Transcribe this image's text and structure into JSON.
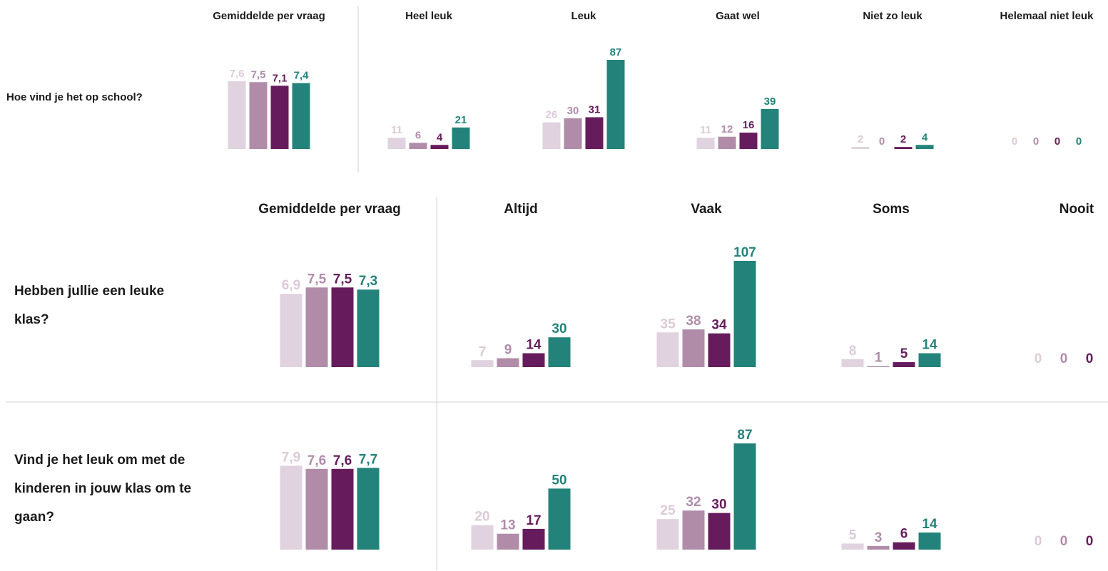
{
  "colors": [
    "#e0d2de",
    "#b08ca9",
    "#661c5c",
    "#23837a"
  ],
  "sections": [
    {
      "average_header": "Gemiddelde per vraag",
      "answers": [
        "Heel leuk",
        "Leuk",
        "Gaat wel",
        "Niet zo leuk",
        "Helemaal niet leuk"
      ],
      "questions": [
        {
          "text": "Hoe vind je het op school?",
          "averages": [
            7.6,
            7.5,
            7.1,
            7.4
          ],
          "average_labels": [
            "7,6",
            "7,5",
            "7,1",
            "7,4"
          ],
          "counts": [
            [
              11,
              6,
              4,
              21
            ],
            [
              26,
              30,
              31,
              87
            ],
            [
              11,
              12,
              16,
              39
            ],
            [
              2,
              0,
              2,
              4
            ],
            [
              0,
              0,
              0,
              0
            ]
          ]
        }
      ]
    },
    {
      "average_header": "Gemiddelde per vraag",
      "answers": [
        "Altijd",
        "Vaak",
        "Soms",
        "Nooit"
      ],
      "questions": [
        {
          "text": "Hebben jullie een leuke klas?",
          "averages": [
            6.9,
            7.5,
            7.5,
            7.3
          ],
          "average_labels": [
            "6,9",
            "7,5",
            "7,5",
            "7,3"
          ],
          "counts": [
            [
              7,
              9,
              14,
              30
            ],
            [
              35,
              38,
              34,
              107
            ],
            [
              8,
              1,
              5,
              14
            ],
            [
              0,
              0,
              0,
              null
            ]
          ]
        },
        {
          "text": "Vind je het leuk om met de kinderen in jouw klas om te gaan?",
          "averages": [
            7.9,
            7.6,
            7.6,
            7.7
          ],
          "average_labels": [
            "7,9",
            "7,6",
            "7,6",
            "7,7"
          ],
          "counts": [
            [
              20,
              13,
              17,
              50
            ],
            [
              25,
              32,
              30,
              87
            ],
            [
              5,
              3,
              6,
              14
            ],
            [
              0,
              0,
              0,
              null
            ]
          ]
        }
      ]
    }
  ]
}
